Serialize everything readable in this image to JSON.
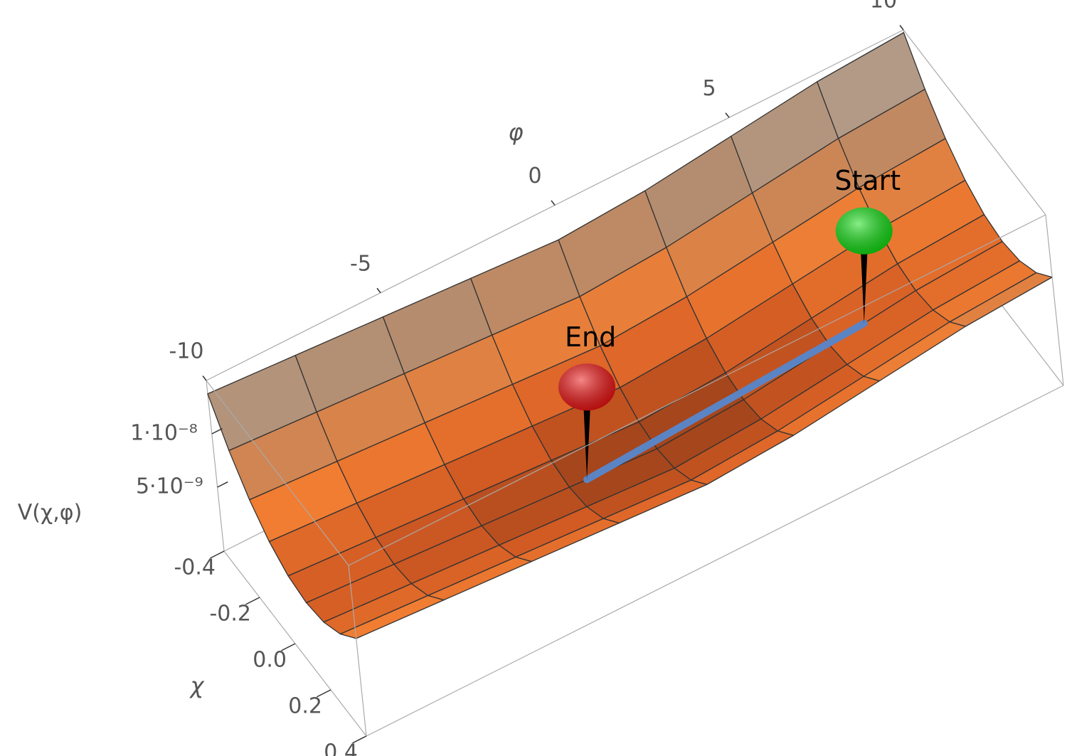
{
  "chart_data": {
    "type": "surface",
    "xlabel": "φ",
    "ylabel": "χ",
    "zlabel": "V(χ,φ)",
    "x": [
      -10,
      -7.5,
      -5,
      -2.5,
      0,
      2.5,
      5,
      7.5,
      10
    ],
    "y": [
      -0.4,
      -0.3,
      -0.2,
      -0.1,
      0,
      0.1,
      0.2,
      0.3,
      0.4
    ],
    "z": [
      [
        1.375e-08,
        1.06e-08,
        8.15e-09,
        6.4e-09,
        5.35e-09,
        5e-09,
        5.35e-09,
        6.4e-09,
        8.15e-09
      ],
      [
        1.325e-08,
        1.01e-08,
        7.65e-09,
        5.9e-09,
        4.85e-09,
        4.5e-09,
        4.85e-09,
        5.9e-09,
        7.65e-09
      ],
      [
        1.275e-08,
        9.6e-09,
        7.15e-09,
        5.4e-09,
        4.35e-09,
        4e-09,
        4.35e-09,
        5.4e-09,
        7.15e-09
      ],
      [
        1.225e-08,
        9.1e-09,
        6.65e-09,
        4.9e-09,
        3.85e-09,
        3.5e-09,
        3.85e-09,
        4.9e-09,
        6.65e-09
      ],
      [
        1.175e-08,
        8.6e-09,
        6.15e-09,
        4.4e-09,
        3.35e-09,
        3e-09,
        3.35e-09,
        4.4e-09,
        6.15e-09
      ],
      [
        1.225e-08,
        9.1e-09,
        6.65e-09,
        4.9e-09,
        3.85e-09,
        3.5e-09,
        3.85e-09,
        4.9e-09,
        6.65e-09
      ],
      [
        1.325e-08,
        1.01e-08,
        7.65e-09,
        5.9e-09,
        4.85e-09,
        4.5e-09,
        4.85e-09,
        5.9e-09,
        7.65e-09
      ],
      [
        1.425e-08,
        1.11e-08,
        8.65e-09,
        6.9e-09,
        5.85e-09,
        5.5e-09,
        5.85e-09,
        6.9e-09,
        8.65e-09
      ],
      [
        1.475e-08,
        1.16e-08,
        9.15e-09,
        7.4e-09,
        6.35e-09,
        6e-09,
        6.35e-09,
        7.4e-09,
        9.15e-09
      ]
    ],
    "xlim": [
      -10,
      10
    ],
    "ylim": [
      -0.4,
      0.4
    ],
    "zlim": [
      -1e-09,
      1.5e-08
    ],
    "xticks": [
      -10,
      -5,
      0,
      5,
      10
    ],
    "yticks": [
      -0.4,
      -0.2,
      {
        "value": 0,
        "label": "0.0"
      },
      0.2,
      0.4
    ],
    "zticks": [
      {
        "value": 5e-09,
        "label": "5·10⁻⁹"
      },
      {
        "value": 1e-08,
        "label": "1·10⁻⁸"
      }
    ],
    "path": {
      "color": "#5b84c4",
      "x": [
        6,
        -2
      ],
      "y": [
        0.1,
        0.1
      ],
      "z": [
        4.9e-09,
        3.4e-09
      ]
    },
    "annotations": [
      {
        "text": "Start",
        "x": 6,
        "y": 0.1,
        "z": 4.9e-09,
        "color": "#10e010"
      },
      {
        "text": "End",
        "x": -2,
        "y": 0.1,
        "z": 3.4e-09,
        "color": "#f01010"
      }
    ]
  }
}
